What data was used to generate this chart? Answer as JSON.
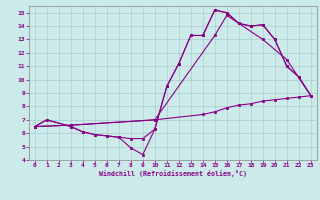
{
  "xlabel": "Windchill (Refroidissement éolien,°C)",
  "xlim": [
    -0.5,
    23.5
  ],
  "ylim": [
    4,
    15.5
  ],
  "xticks": [
    0,
    1,
    2,
    3,
    4,
    5,
    6,
    7,
    8,
    9,
    10,
    11,
    12,
    13,
    14,
    15,
    16,
    17,
    18,
    19,
    20,
    21,
    22,
    23
  ],
  "yticks": [
    4,
    5,
    6,
    7,
    8,
    9,
    10,
    11,
    12,
    13,
    14,
    15
  ],
  "bg_color": "#cceaea",
  "line_color": "#880088",
  "grid_color": "#aacccc",
  "line1_x": [
    0,
    1,
    3,
    4,
    5,
    6,
    7,
    8,
    9,
    10,
    11,
    12,
    13,
    14,
    15,
    16,
    17,
    18,
    19,
    20,
    21,
    22,
    23
  ],
  "line1_y": [
    6.5,
    7.0,
    6.5,
    6.1,
    5.9,
    5.8,
    5.7,
    5.6,
    5.6,
    6.3,
    9.5,
    11.2,
    13.3,
    13.3,
    15.2,
    15.0,
    14.2,
    14.0,
    14.1,
    13.0,
    11.0,
    10.2,
    8.8
  ],
  "line2_x": [
    0,
    1,
    3,
    4,
    5,
    6,
    7,
    8,
    9,
    10,
    11,
    12,
    13,
    14,
    15,
    16,
    17,
    18,
    19,
    20,
    21,
    22,
    23
  ],
  "line2_y": [
    6.5,
    7.0,
    6.5,
    6.1,
    5.9,
    5.8,
    5.7,
    4.9,
    4.4,
    6.3,
    9.5,
    11.2,
    13.3,
    13.3,
    15.2,
    15.0,
    14.2,
    14.0,
    14.1,
    13.0,
    11.0,
    10.2,
    8.8
  ],
  "line3_x": [
    0,
    3,
    10,
    15,
    16,
    17,
    19,
    21,
    23
  ],
  "line3_y": [
    6.5,
    6.6,
    7.0,
    13.3,
    14.8,
    14.2,
    13.0,
    11.5,
    8.8
  ],
  "line4_x": [
    0,
    3,
    10,
    14,
    15,
    16,
    17,
    18,
    19,
    20,
    21,
    22,
    23
  ],
  "line4_y": [
    6.5,
    6.6,
    7.0,
    7.4,
    7.6,
    7.9,
    8.1,
    8.2,
    8.4,
    8.5,
    8.6,
    8.7,
    8.8
  ]
}
